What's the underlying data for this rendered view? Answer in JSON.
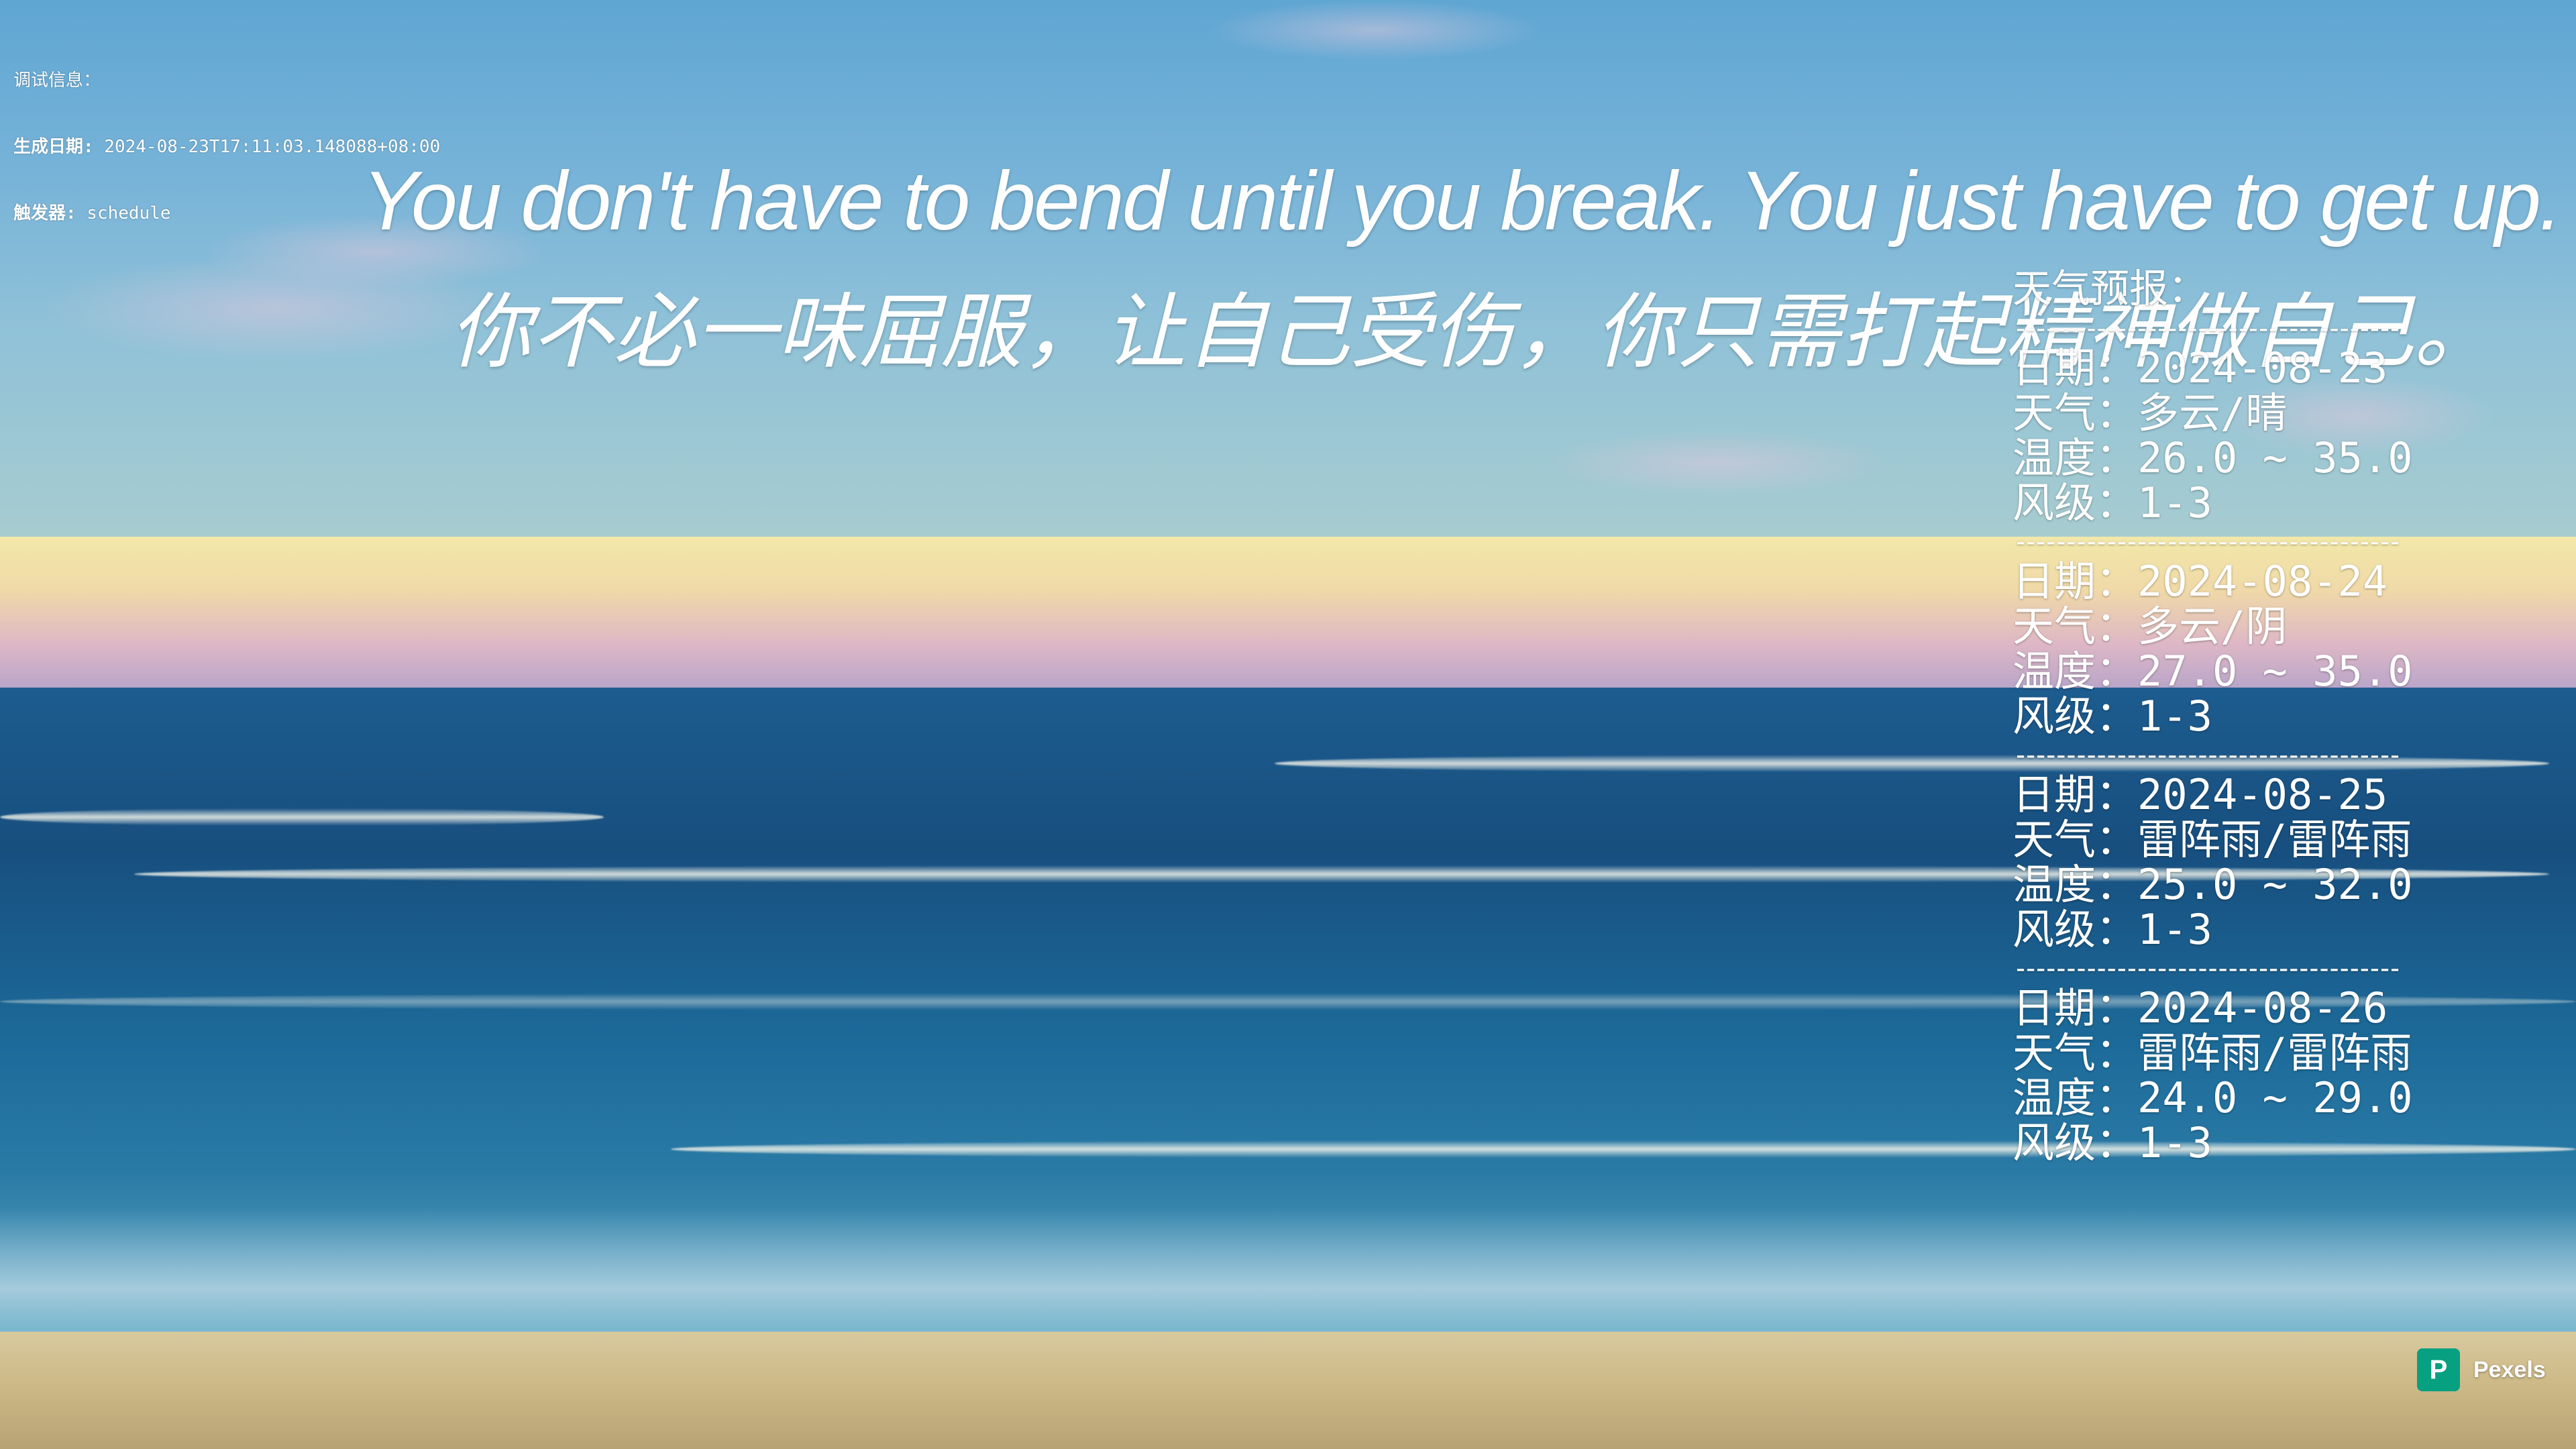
{
  "debug": {
    "line1": "调试信息：",
    "line2_label": "生成日期:",
    "line2_value": " 2024-08-23T17:11:03.148088+08:00",
    "line3_label": "触发器:",
    "line3_value": " schedule"
  },
  "quote": {
    "english": "You don't have to bend until you break. You just have to get up.",
    "chinese": "你不必一味屈服，让自己受伤，你只需打起精神做自己。"
  },
  "weather": {
    "title": "天气预报：",
    "divider": "--------------------------------------",
    "days": [
      {
        "date": "日期：2024-08-23",
        "weather": "天气：多云/晴",
        "temp": "温度：26.0 ~ 35.0",
        "wind": "风级：1-3"
      },
      {
        "date": "日期：2024-08-24",
        "weather": "天气：多云/阴",
        "temp": "温度：27.0 ~ 35.0",
        "wind": "风级：1-3"
      },
      {
        "date": "日期：2024-08-25",
        "weather": "天气：雷阵雨/雷阵雨",
        "temp": "温度：25.0 ~ 32.0",
        "wind": "风级：1-3"
      },
      {
        "date": "日期：2024-08-26",
        "weather": "天气：雷阵雨/雷阵雨",
        "temp": "温度：24.0 ~ 29.0",
        "wind": "风级：1-3"
      }
    ]
  },
  "badge": {
    "logo_letter": "P",
    "label": "Pexels",
    "color": "#07a081"
  }
}
